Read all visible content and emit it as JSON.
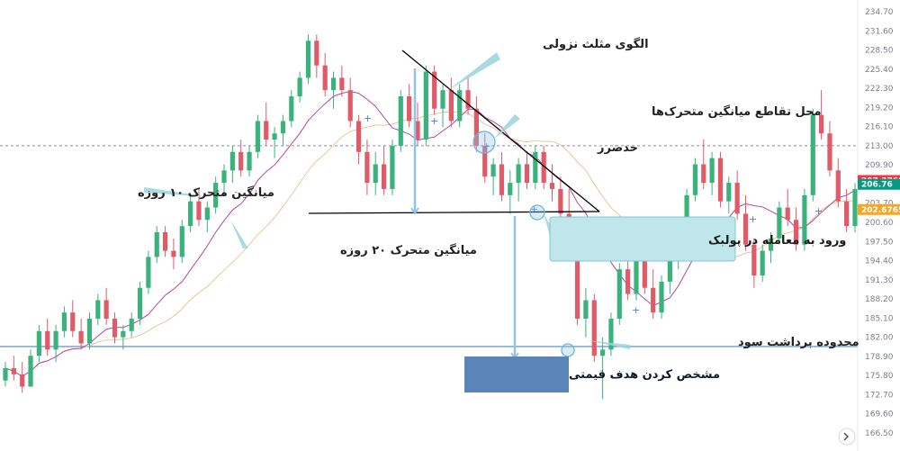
{
  "chart_data": {
    "type": "candlestick",
    "y_ticks": [
      "234.70",
      "231.60",
      "228.50",
      "225.40",
      "222.30",
      "219.20",
      "216.10",
      "213.00",
      "209.90",
      "206.80",
      "203.70",
      "200.60",
      "197.50",
      "194.40",
      "191.30",
      "188.20",
      "185.10",
      "182.00",
      "178.90",
      "175.80",
      "172.70",
      "169.60",
      "166.50"
    ],
    "price_tags": [
      {
        "label": "207.3760",
        "value": 207.376,
        "color": "#f23645"
      },
      {
        "label": "206.76",
        "value": 206.76,
        "color": "#089981"
      },
      {
        "label": "202.6765",
        "value": 202.6765,
        "color": "#f5a623"
      }
    ],
    "levels": {
      "resistance": 213.0,
      "support": 180.5,
      "triangle_base": 204.2
    },
    "annotations": {
      "triangle_pattern": "الگوی مثلث نزولی",
      "ma_cross": "محل تقاطع میانگین متحرک‌ها",
      "caution": "حدضرر",
      "ma10": "میانگین متحرک ۱۰ روزه",
      "ma20": "میانگین متحرک ۲۰ روزه",
      "entry": "ورود به معامله در پولبک",
      "target_zone": "محدوده برداشت سود",
      "price_target": "مشخص کردن هدف قیمتی"
    },
    "candles": [
      [
        175,
        178,
        174,
        177
      ],
      [
        177,
        179,
        175,
        176
      ],
      [
        176,
        178,
        173,
        174
      ],
      [
        174,
        180,
        174,
        179
      ],
      [
        179,
        184,
        178,
        183
      ],
      [
        183,
        185,
        179,
        180
      ],
      [
        180,
        184,
        178,
        183
      ],
      [
        183,
        187,
        182,
        186
      ],
      [
        186,
        188,
        182,
        183
      ],
      [
        183,
        185,
        180,
        181
      ],
      [
        181,
        186,
        180,
        185
      ],
      [
        185,
        189,
        184,
        188
      ],
      [
        188,
        190,
        184,
        185
      ],
      [
        185,
        186,
        181,
        182
      ],
      [
        182,
        184,
        180,
        183
      ],
      [
        183,
        186,
        182,
        185
      ],
      [
        185,
        191,
        184,
        190
      ],
      [
        190,
        196,
        189,
        195
      ],
      [
        195,
        200,
        194,
        199
      ],
      [
        199,
        200,
        195,
        196
      ],
      [
        196,
        198,
        193,
        195
      ],
      [
        195,
        201,
        194,
        200
      ],
      [
        200,
        205,
        199,
        204
      ],
      [
        204,
        206,
        200,
        201
      ],
      [
        201,
        204,
        199,
        203
      ],
      [
        203,
        208,
        202,
        207
      ],
      [
        207,
        210,
        205,
        209
      ],
      [
        209,
        213,
        207,
        212
      ],
      [
        212,
        214,
        208,
        209
      ],
      [
        209,
        213,
        208,
        212
      ],
      [
        212,
        218,
        211,
        217
      ],
      [
        217,
        220,
        213,
        214
      ],
      [
        214,
        216,
        211,
        215
      ],
      [
        215,
        218,
        213,
        217
      ],
      [
        217,
        222,
        216,
        221
      ],
      [
        221,
        225,
        220,
        224
      ],
      [
        224,
        231,
        223,
        230
      ],
      [
        230,
        231,
        224,
        226
      ],
      [
        226,
        228,
        221,
        222
      ],
      [
        222,
        225,
        219,
        224
      ],
      [
        224,
        226,
        221,
        222
      ],
      [
        222,
        224,
        216,
        217
      ],
      [
        217,
        218,
        210,
        212
      ],
      [
        212,
        214,
        205,
        207
      ],
      [
        207,
        212,
        205,
        210
      ],
      [
        210,
        213,
        205,
        206
      ],
      [
        206,
        214,
        205,
        213
      ],
      [
        213,
        222,
        212,
        221
      ],
      [
        221,
        223,
        216,
        217
      ],
      [
        217,
        220,
        213,
        214
      ],
      [
        214,
        226,
        213,
        225
      ],
      [
        225,
        226,
        218,
        219
      ],
      [
        219,
        223,
        216,
        222
      ],
      [
        222,
        224,
        216,
        217
      ],
      [
        217,
        223,
        216,
        222
      ],
      [
        222,
        224,
        218,
        219
      ],
      [
        219,
        221,
        212,
        213
      ],
      [
        213,
        215,
        207,
        208
      ],
      [
        208,
        211,
        205,
        210
      ],
      [
        210,
        212,
        204,
        205
      ],
      [
        205,
        209,
        202,
        207
      ],
      [
        207,
        211,
        204,
        210
      ],
      [
        210,
        212,
        206,
        207
      ],
      [
        207,
        213,
        206,
        212
      ],
      [
        212,
        213,
        206,
        207
      ],
      [
        207,
        210,
        204,
        206
      ],
      [
        206,
        208,
        201,
        202
      ],
      [
        202,
        206,
        196,
        197
      ],
      [
        197,
        198,
        184,
        185
      ],
      [
        185,
        190,
        182,
        188
      ],
      [
        188,
        189,
        178,
        179
      ],
      [
        179,
        182,
        172,
        180
      ],
      [
        180,
        186,
        179,
        185
      ],
      [
        185,
        194,
        184,
        193
      ],
      [
        193,
        195,
        188,
        189
      ],
      [
        189,
        197,
        188,
        196
      ],
      [
        196,
        198,
        189,
        190
      ],
      [
        190,
        193,
        185,
        186
      ],
      [
        186,
        192,
        185,
        191
      ],
      [
        191,
        196,
        189,
        195
      ],
      [
        195,
        199,
        193,
        198
      ],
      [
        198,
        206,
        197,
        205
      ],
      [
        205,
        211,
        204,
        210
      ],
      [
        210,
        214,
        206,
        207
      ],
      [
        207,
        212,
        205,
        211
      ],
      [
        211,
        212,
        203,
        204
      ],
      [
        204,
        208,
        202,
        207
      ],
      [
        207,
        209,
        201,
        202
      ],
      [
        202,
        205,
        196,
        197
      ],
      [
        197,
        198,
        190,
        192
      ],
      [
        192,
        197,
        191,
        196
      ],
      [
        196,
        199,
        194,
        198
      ],
      [
        198,
        204,
        197,
        203
      ],
      [
        203,
        206,
        200,
        201
      ],
      [
        201,
        203,
        196,
        197
      ],
      [
        197,
        206,
        196,
        205
      ],
      [
        205,
        219,
        204,
        218
      ],
      [
        218,
        222,
        214,
        215
      ],
      [
        215,
        217,
        208,
        209
      ],
      [
        209,
        211,
        203,
        204
      ],
      [
        204,
        206,
        199,
        200
      ],
      [
        200,
        207,
        199,
        206
      ]
    ]
  }
}
